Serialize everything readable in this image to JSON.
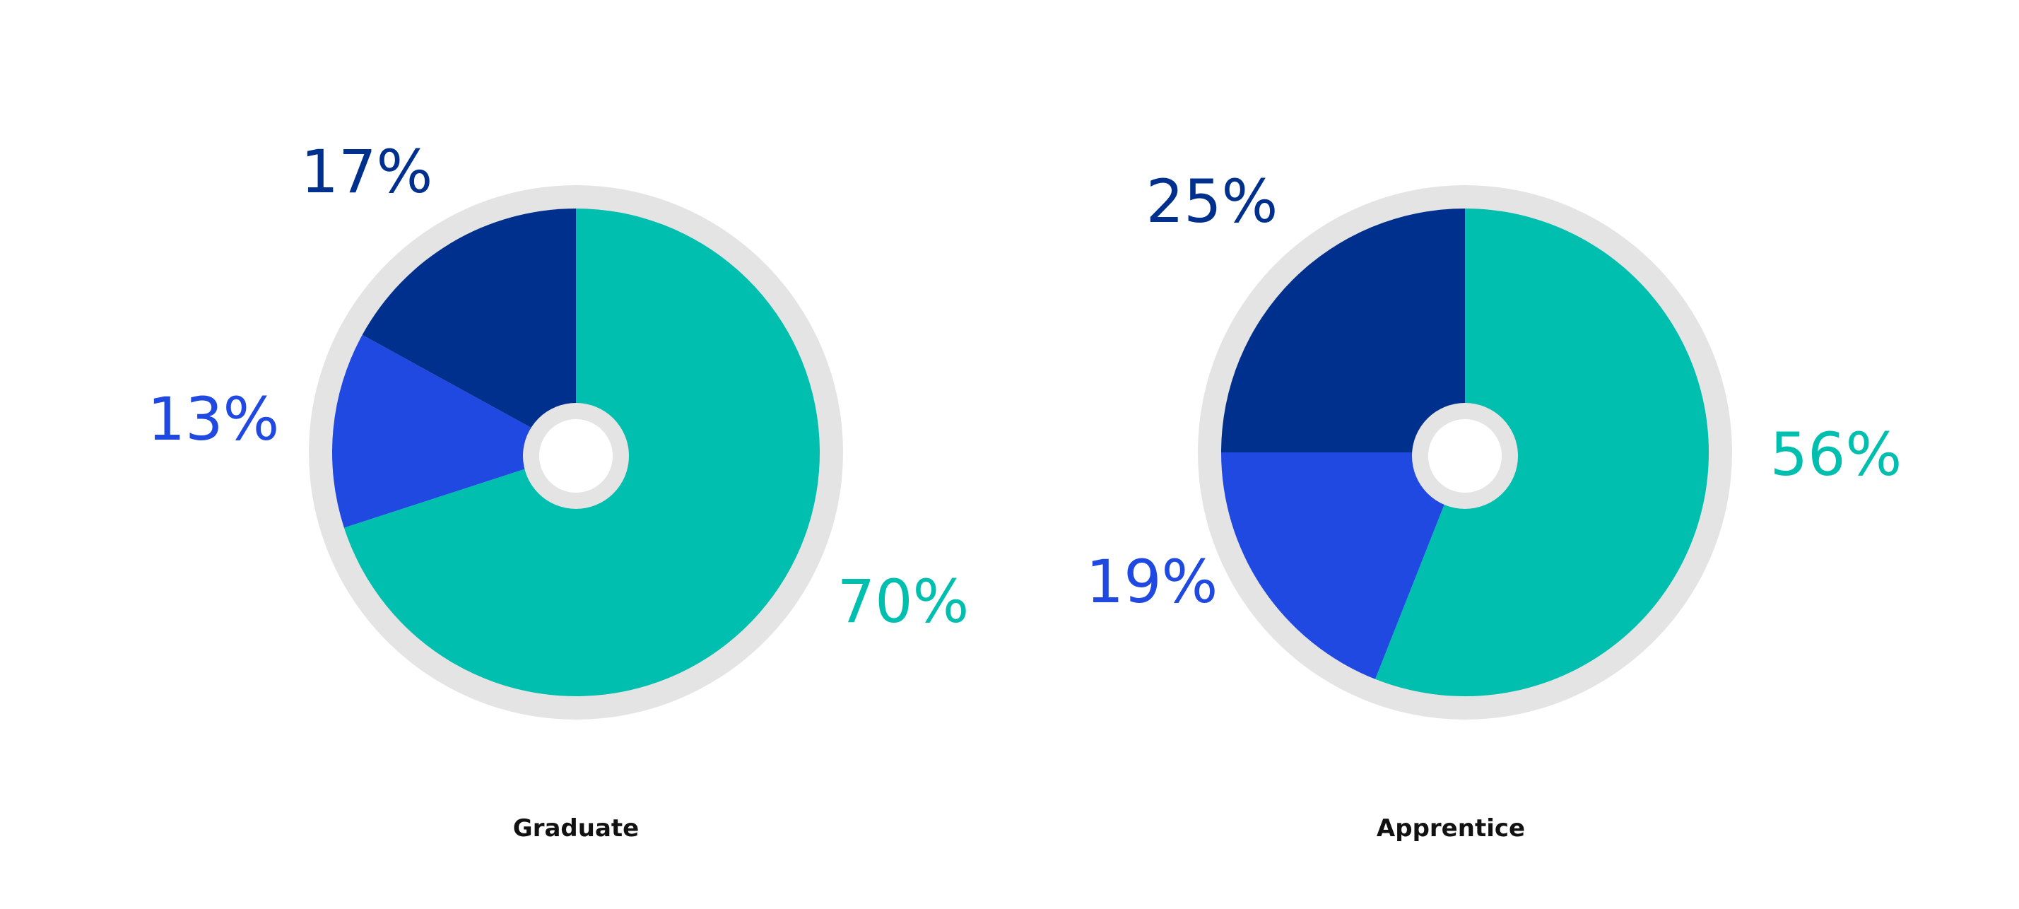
{
  "colors": {
    "teal": "#00BFAE",
    "royal_blue": "#1F49E0",
    "navy": "#00308E",
    "ring": "#E4E4E4",
    "caption": "#111111"
  },
  "chart_data": [
    {
      "type": "pie",
      "caption": "Graduate",
      "slices": [
        {
          "value": 70,
          "label": "70%",
          "color": "#00BFAE"
        },
        {
          "value": 13,
          "label": "13%",
          "color": "#1F49E0"
        },
        {
          "value": 17,
          "label": "17%",
          "color": "#00308E"
        }
      ]
    },
    {
      "type": "pie",
      "caption": "Apprentice",
      "slices": [
        {
          "value": 56,
          "label": "56%",
          "color": "#00BFAE"
        },
        {
          "value": 19,
          "label": "19%",
          "color": "#1F49E0"
        },
        {
          "value": 25,
          "label": "25%",
          "color": "#00308E"
        }
      ]
    }
  ]
}
